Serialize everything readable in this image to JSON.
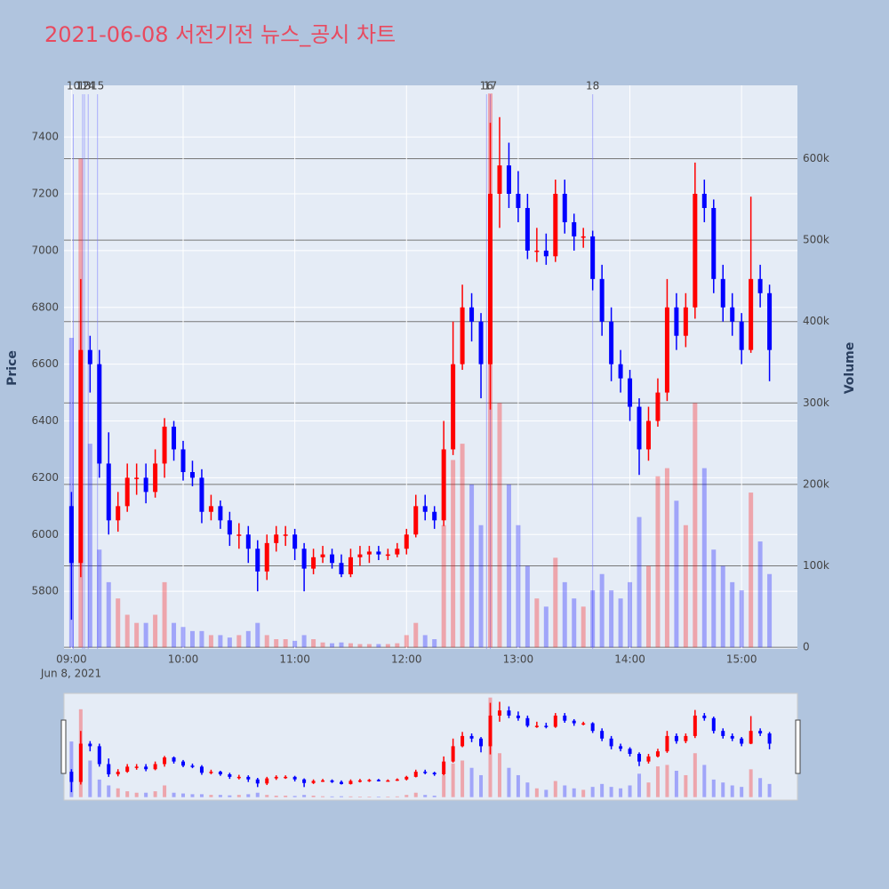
{
  "chart_data": {
    "type": "candlestick",
    "title": "2021-06-08 서전기전 뉴스_공시 차트",
    "x": [
      "09:00",
      "09:05",
      "09:10",
      "09:15",
      "09:20",
      "09:25",
      "09:30",
      "09:35",
      "09:40",
      "09:45",
      "09:50",
      "09:55",
      "10:00",
      "10:05",
      "10:10",
      "10:15",
      "10:20",
      "10:25",
      "10:30",
      "10:35",
      "10:40",
      "10:45",
      "10:50",
      "10:55",
      "11:00",
      "11:05",
      "11:10",
      "11:15",
      "11:20",
      "11:25",
      "11:30",
      "11:35",
      "11:40",
      "11:45",
      "11:50",
      "11:55",
      "12:00",
      "12:05",
      "12:10",
      "12:15",
      "12:20",
      "12:25",
      "12:30",
      "12:35",
      "12:40",
      "12:45",
      "12:50",
      "12:55",
      "13:00",
      "13:05",
      "13:10",
      "13:15",
      "13:20",
      "13:25",
      "13:30",
      "13:35",
      "13:40",
      "13:45",
      "13:50",
      "13:55",
      "14:00",
      "14:05",
      "14:10",
      "14:15",
      "14:20",
      "14:25",
      "14:30",
      "14:35",
      "14:40",
      "14:45",
      "14:50",
      "14:55",
      "15:00",
      "15:05",
      "15:10",
      "15:15"
    ],
    "open": [
      6100,
      5900,
      6650,
      6600,
      6250,
      6050,
      6100,
      6200,
      6200,
      6150,
      6250,
      6380,
      6300,
      6220,
      6200,
      6080,
      6100,
      6050,
      6000,
      6000,
      5950,
      5870,
      5970,
      6000,
      6000,
      5950,
      5880,
      5920,
      5930,
      5900,
      5860,
      5920,
      5930,
      5940,
      5930,
      5930,
      5950,
      6000,
      6100,
      6080,
      6050,
      6300,
      6600,
      6800,
      6750,
      6600,
      7200,
      7300,
      7200,
      7150,
      7000,
      7000,
      6980,
      7200,
      7100,
      7050,
      7050,
      6900,
      6750,
      6600,
      6550,
      6450,
      6300,
      6400,
      6500,
      6800,
      6700,
      6800,
      7200,
      7150,
      6900,
      6800,
      6750,
      6650,
      6900,
      6850
    ],
    "high": [
      6150,
      6900,
      6700,
      6650,
      6360,
      6150,
      6250,
      6250,
      6250,
      6300,
      6410,
      6400,
      6330,
      6260,
      6230,
      6140,
      6120,
      6080,
      6040,
      6030,
      5980,
      6000,
      6030,
      6030,
      6020,
      5970,
      5950,
      5960,
      5950,
      5930,
      5950,
      5960,
      5960,
      5960,
      5950,
      5970,
      6020,
      6140,
      6140,
      6100,
      6400,
      6750,
      6880,
      6850,
      6780,
      7450,
      7470,
      7380,
      7280,
      7200,
      7080,
      7060,
      7250,
      7250,
      7130,
      7080,
      7070,
      6950,
      6800,
      6650,
      6580,
      6480,
      6450,
      6550,
      6900,
      6850,
      6850,
      7310,
      7250,
      7180,
      6950,
      6850,
      6780,
      7190,
      6950,
      6880
    ],
    "low": [
      5700,
      5850,
      6500,
      6200,
      6000,
      6010,
      6080,
      6140,
      6110,
      6130,
      6200,
      6260,
      6190,
      6170,
      6040,
      6050,
      6020,
      5960,
      5950,
      5900,
      5800,
      5840,
      5940,
      5960,
      5910,
      5800,
      5860,
      5900,
      5880,
      5850,
      5850,
      5890,
      5900,
      5910,
      5910,
      5920,
      5930,
      5990,
      6050,
      6020,
      6030,
      6280,
      6580,
      6680,
      6480,
      6440,
      7080,
      7150,
      7100,
      6970,
      6960,
      6950,
      6960,
      7060,
      7000,
      7010,
      6860,
      6700,
      6540,
      6500,
      6400,
      6210,
      6260,
      6380,
      6470,
      6650,
      6660,
      6760,
      7100,
      6850,
      6750,
      6700,
      6600,
      6640,
      6800,
      6540
    ],
    "close": [
      5900,
      6650,
      6600,
      6250,
      6050,
      6100,
      6200,
      6200,
      6150,
      6250,
      6380,
      6300,
      6220,
      6200,
      6080,
      6100,
      6050,
      6000,
      6000,
      5950,
      5870,
      5970,
      6000,
      6000,
      5950,
      5880,
      5920,
      5930,
      5900,
      5860,
      5920,
      5930,
      5940,
      5930,
      5930,
      5950,
      6000,
      6100,
      6080,
      6050,
      6300,
      6600,
      6800,
      6750,
      6600,
      7200,
      7300,
      7200,
      7150,
      7000,
      7000,
      6980,
      7200,
      7100,
      7050,
      7050,
      6900,
      6750,
      6600,
      6550,
      6450,
      6300,
      6400,
      6500,
      6800,
      6700,
      6800,
      7200,
      7150,
      6900,
      6800,
      6750,
      6650,
      6900,
      6850,
      6650
    ],
    "volume": [
      380000,
      600000,
      250000,
      120000,
      80000,
      60000,
      40000,
      30000,
      30000,
      40000,
      80000,
      30000,
      25000,
      20000,
      20000,
      15000,
      15000,
      12000,
      15000,
      20000,
      30000,
      15000,
      10000,
      10000,
      8000,
      15000,
      10000,
      6000,
      5000,
      6000,
      5000,
      4000,
      4000,
      4000,
      4000,
      5000,
      15000,
      30000,
      15000,
      10000,
      150000,
      230000,
      250000,
      200000,
      150000,
      680000,
      300000,
      200000,
      150000,
      100000,
      60000,
      50000,
      110000,
      80000,
      60000,
      50000,
      70000,
      90000,
      70000,
      60000,
      80000,
      160000,
      100000,
      210000,
      220000,
      180000,
      150000,
      300000,
      220000,
      120000,
      100000,
      80000,
      70000,
      190000,
      130000,
      90000
    ],
    "increasing_color": "#ff0000",
    "decreasing_color": "#0000ff",
    "xlim": [
      "08:56",
      "15:30"
    ],
    "xticks": [
      "09:00",
      "10:00",
      "11:00",
      "12:00",
      "13:00",
      "14:00",
      "15:00"
    ],
    "x_date_label": "Jun 8, 2021",
    "ylim": [
      5597,
      7582
    ],
    "yticks": [
      5800,
      6000,
      6200,
      6400,
      6600,
      6800,
      7000,
      7200,
      7400
    ],
    "y2lim": [
      -2000,
      690000
    ],
    "y2ticks": [
      0,
      {
        "value": 100000,
        "label": "100k"
      },
      {
        "value": 200000,
        "label": "200k"
      },
      {
        "value": 300000,
        "label": "300k"
      },
      {
        "value": 400000,
        "label": "400k"
      },
      {
        "value": 500000,
        "label": "500k"
      },
      {
        "value": 600000,
        "label": "600k"
      }
    ],
    "ylabel": "Price",
    "y2label": "Volume",
    "annotations": [
      {
        "x": "09:01",
        "text": "10"
      },
      {
        "x": "09:06",
        "text": "12"
      },
      {
        "x": "09:07",
        "text": "13"
      },
      {
        "x": "09:09",
        "text": "14"
      },
      {
        "x": "09:14",
        "text": "15"
      },
      {
        "x": "12:43",
        "text": "16"
      },
      {
        "x": "12:45",
        "text": "17"
      },
      {
        "x": "13:40",
        "text": "18"
      }
    ],
    "grid": true,
    "range_slider": true
  }
}
